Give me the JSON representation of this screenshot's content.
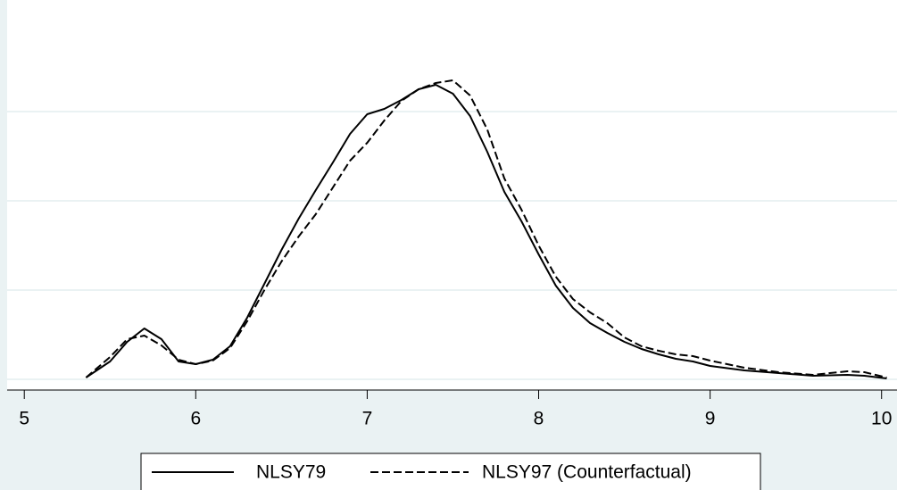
{
  "chart_data": {
    "type": "line",
    "x": [
      5.36,
      5.5,
      5.6,
      5.7,
      5.8,
      5.9,
      6.0,
      6.1,
      6.2,
      6.3,
      6.4,
      6.5,
      6.6,
      6.7,
      6.8,
      6.9,
      7.0,
      7.1,
      7.2,
      7.3,
      7.4,
      7.5,
      7.6,
      7.7,
      7.8,
      7.9,
      8.0,
      8.1,
      8.2,
      8.3,
      8.4,
      8.5,
      8.6,
      8.7,
      8.8,
      8.9,
      9.0,
      9.2,
      9.4,
      9.6,
      9.8,
      9.9,
      10.03
    ],
    "series": [
      {
        "name": "NLSY79",
        "color": "#000000",
        "dash": "solid",
        "values": [
          0.002,
          0.02,
          0.042,
          0.057,
          0.045,
          0.02,
          0.017,
          0.022,
          0.037,
          0.069,
          0.107,
          0.145,
          0.18,
          0.212,
          0.243,
          0.275,
          0.297,
          0.303,
          0.313,
          0.325,
          0.33,
          0.32,
          0.295,
          0.255,
          0.21,
          0.177,
          0.14,
          0.105,
          0.08,
          0.063,
          0.052,
          0.042,
          0.034,
          0.028,
          0.023,
          0.02,
          0.015,
          0.01,
          0.007,
          0.004,
          0.005,
          0.004,
          0.001
        ]
      },
      {
        "name": "NLSY97 (Counterfactual)",
        "color": "#000000",
        "dash": "dashed",
        "values": [
          0.002,
          0.025,
          0.045,
          0.049,
          0.038,
          0.022,
          0.017,
          0.021,
          0.035,
          0.065,
          0.1,
          0.132,
          0.16,
          0.185,
          0.215,
          0.245,
          0.265,
          0.29,
          0.312,
          0.325,
          0.332,
          0.335,
          0.318,
          0.28,
          0.225,
          0.19,
          0.15,
          0.115,
          0.09,
          0.075,
          0.063,
          0.047,
          0.037,
          0.032,
          0.028,
          0.026,
          0.021,
          0.013,
          0.008,
          0.005,
          0.009,
          0.008,
          0.002
        ]
      }
    ],
    "xlim": [
      4.9,
      10.09
    ],
    "xticks": [
      5,
      6,
      7,
      8,
      9,
      10
    ],
    "ylim": [
      -0.012,
      0.425
    ],
    "yticks": [
      0,
      0.1,
      0.2,
      0.3
    ],
    "grid": true,
    "legend": "bottom"
  }
}
